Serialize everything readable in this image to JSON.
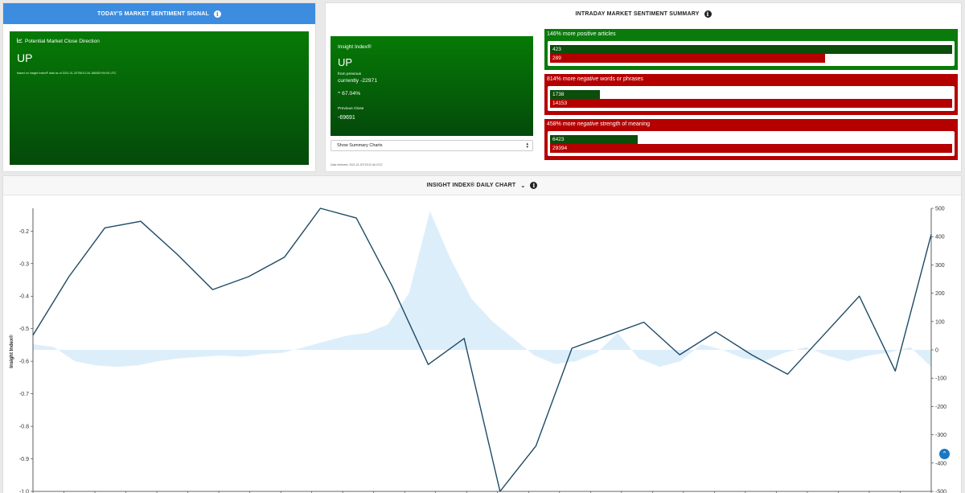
{
  "signal": {
    "title": "TODAY'S MARKET SENTIMENT SIGNAL",
    "heading": "Potential Market Close Direction",
    "direction": "UP",
    "note": "based on Insight Index® data as of 2021-01-20T06:01:34.186363+00:00 UTC"
  },
  "summary": {
    "title": "INTRADAY MARKET SENTIMENT SUMMARY",
    "index_label": "Insight Index®",
    "index_direction": "UP",
    "from_previous": "from previous",
    "currently": "currently -22971",
    "change_pct": "67.04%",
    "prev_close_label": "Previous Close",
    "prev_close": "-69691",
    "select_value": "Show Summary Charts",
    "date_note": "Data retrieved: 2021-01-20T15:22:46.471Z",
    "metrics": [
      {
        "pre": "146% more ",
        "em": "positive",
        "post": " articles",
        "green_value": "423",
        "red_value": "289",
        "green_frac": 1.0,
        "red_frac": 0.683
      },
      {
        "pre": "814% more ",
        "em": "negative",
        "post": " words or phrases",
        "green_value": "1738",
        "red_value": "14153",
        "green_frac": 0.123,
        "red_frac": 1.0
      },
      {
        "pre": "458% more ",
        "em": "negative",
        "post": " strength of meaning",
        "green_value": "6423",
        "red_value": "29394",
        "green_frac": 0.218,
        "red_frac": 1.0
      }
    ],
    "colors": {
      "green": "#0a7a0a",
      "dark_green": "#0b4d0b",
      "red": "#b50000"
    }
  },
  "chart_panel": {
    "title": "INSIGHT INDEX® DAILY CHART"
  },
  "chart_data": {
    "type": "line",
    "ylabel": "Insight Index®",
    "y_left": {
      "ticks": [
        "-0.2",
        "-0.3",
        "-0.4",
        "-0.5",
        "-0.6",
        "-0.7",
        "-0.8",
        "-0.9",
        "-1.0"
      ],
      "range": [
        -1.0,
        -0.13
      ]
    },
    "y_right": {
      "ticks": [
        "500",
        "400",
        "300",
        "200",
        "100",
        "0",
        "-100",
        "-200",
        "-300",
        "-400",
        "-500"
      ],
      "range": [
        -500,
        500
      ]
    },
    "series": [
      {
        "values": [
          -0.52,
          -0.34,
          -0.19,
          -0.17,
          -0.27,
          -0.38,
          -0.34,
          -0.28,
          -0.13,
          -0.16,
          -0.37,
          -0.61,
          -0.53,
          -1.0,
          -0.86,
          -0.56,
          -0.52,
          -0.48,
          -0.58,
          -0.51,
          -0.58,
          -0.64,
          -0.52,
          -0.4,
          -0.63,
          -0.21
        ],
        "color": "#1d4a66"
      },
      {
        "values": [
          20,
          10,
          -40,
          -55,
          -60,
          -55,
          -40,
          -30,
          -25,
          -20,
          -25,
          -15,
          -10,
          10,
          30,
          50,
          60,
          90,
          200,
          490,
          320,
          180,
          100,
          40,
          -20,
          -50,
          -40,
          -10,
          60,
          -30,
          -60,
          -40,
          20,
          0,
          -30,
          -40,
          -10,
          10,
          -20,
          -40,
          -20,
          -10,
          10,
          -60
        ],
        "fill": "#ddeefb"
      }
    ],
    "grid": false,
    "legend": "none"
  }
}
